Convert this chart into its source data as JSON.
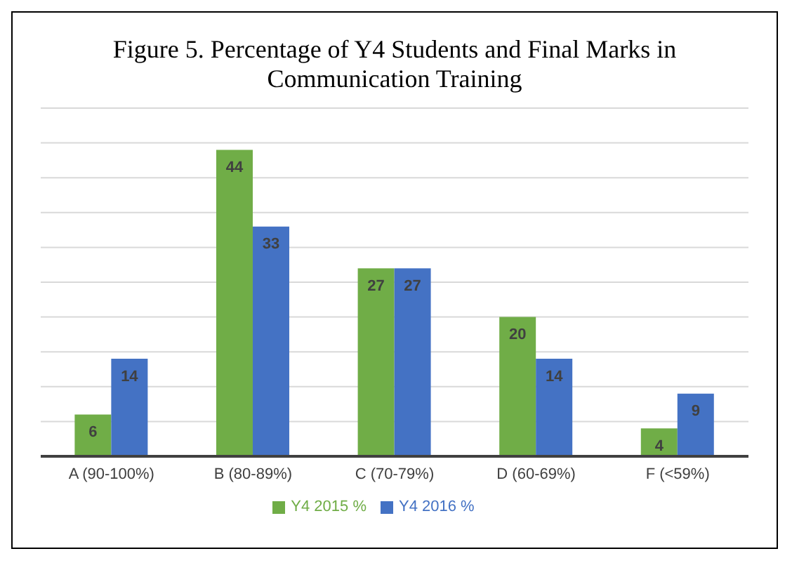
{
  "chart_data": {
    "type": "bar",
    "title": "Figure 5. Percentage of Y4 Students and Final Marks in Communication Training",
    "categories": [
      "A (90-100%)",
      "B (80-89%)",
      "C (70-79%)",
      "D (60-69%)",
      "F (<59%)"
    ],
    "series": [
      {
        "name": "Y4 2015 %",
        "color": "#70ad47",
        "values": [
          6,
          44,
          27,
          20,
          4
        ]
      },
      {
        "name": "Y4 2016 %",
        "color": "#4472c4",
        "values": [
          14,
          33,
          27,
          14,
          9
        ]
      }
    ],
    "ylim": [
      0,
      50
    ],
    "yticks": [
      {
        "value": 0,
        "label": null
      },
      {
        "value": 5,
        "label": null
      },
      {
        "value": 10,
        "label": null
      },
      {
        "value": 15,
        "label": null
      },
      {
        "value": 20,
        "label": null
      },
      {
        "value": 25,
        "label": null
      },
      {
        "value": 30,
        "label": null
      },
      {
        "value": 35,
        "label": null
      },
      {
        "value": 40,
        "label": null
      },
      {
        "value": 45,
        "label": null
      },
      {
        "value": 50,
        "label": null
      }
    ],
    "tick_labels": "x",
    "grid": "y",
    "data_labels": true,
    "legend": "bottom"
  }
}
